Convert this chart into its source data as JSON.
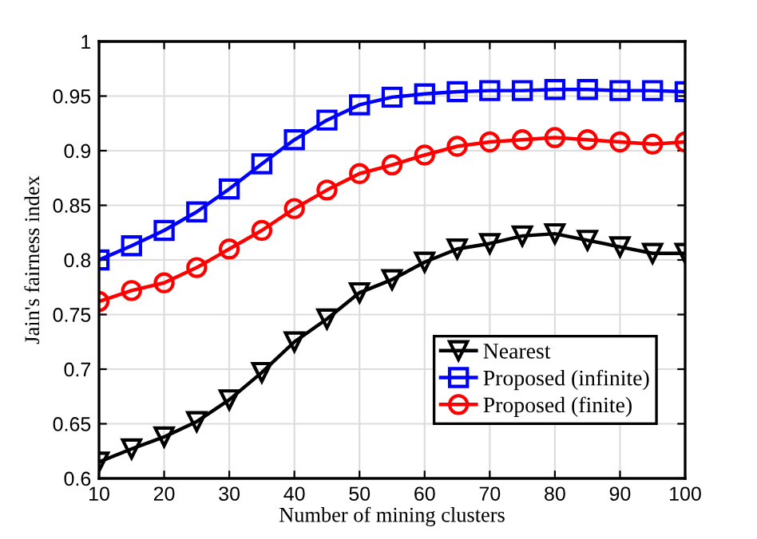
{
  "chart_data": {
    "type": "line",
    "xlabel": "Number of mining clusters",
    "ylabel": "Jain's fairness index",
    "x": [
      10,
      15,
      20,
      25,
      30,
      35,
      40,
      45,
      50,
      55,
      60,
      65,
      70,
      75,
      80,
      85,
      90,
      95,
      100
    ],
    "series": [
      {
        "name": "Nearest",
        "color": "#000000",
        "marker": "triangle",
        "values": [
          0.615,
          0.627,
          0.638,
          0.652,
          0.672,
          0.697,
          0.725,
          0.746,
          0.77,
          0.782,
          0.798,
          0.81,
          0.815,
          0.822,
          0.824,
          0.818,
          0.812,
          0.806,
          0.806
        ]
      },
      {
        "name": "Proposed (infinite)",
        "color": "#0000ff",
        "marker": "square",
        "values": [
          0.8,
          0.813,
          0.827,
          0.844,
          0.865,
          0.888,
          0.91,
          0.928,
          0.942,
          0.949,
          0.952,
          0.954,
          0.955,
          0.955,
          0.956,
          0.956,
          0.955,
          0.955,
          0.954
        ]
      },
      {
        "name": "Proposed (finite)",
        "color": "#ff0000",
        "marker": "circle",
        "values": [
          0.762,
          0.772,
          0.779,
          0.793,
          0.81,
          0.827,
          0.847,
          0.864,
          0.879,
          0.887,
          0.896,
          0.904,
          0.908,
          0.91,
          0.912,
          0.91,
          0.908,
          0.906,
          0.908
        ]
      }
    ],
    "xlim": [
      10,
      100
    ],
    "xticks": [
      10,
      20,
      30,
      40,
      50,
      60,
      70,
      80,
      90,
      100
    ],
    "ylim": [
      0.6,
      1
    ],
    "yticks": [
      0.6,
      0.65,
      0.7,
      0.75,
      0.8,
      0.85,
      0.9,
      0.95,
      1
    ],
    "grid": true,
    "legend": "lower right",
    "line_style": "solid"
  }
}
